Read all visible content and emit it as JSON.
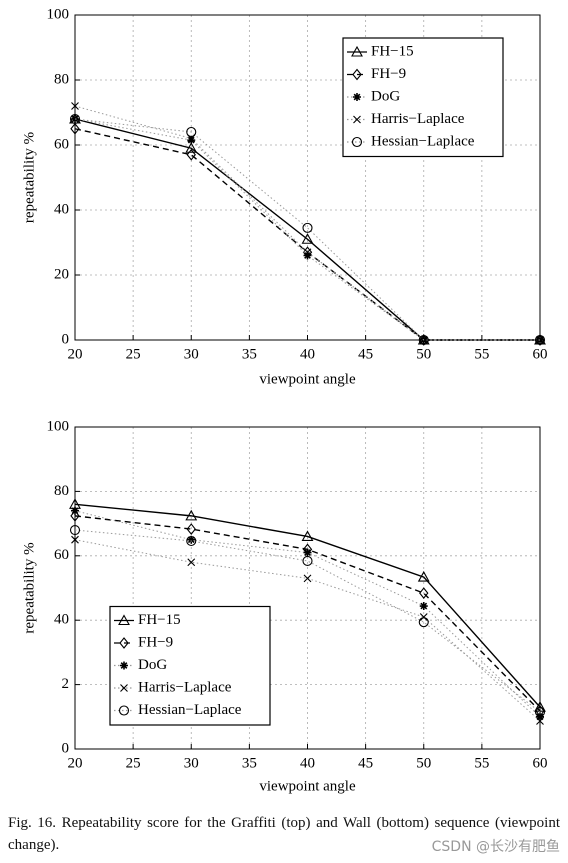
{
  "chart_data": [
    {
      "type": "line",
      "xlabel": "viewpoint angle",
      "ylabel": "repeatability %",
      "x": [
        20,
        30,
        40,
        50,
        60
      ],
      "xlim": [
        20,
        60
      ],
      "xticks": [
        20,
        25,
        30,
        35,
        40,
        45,
        50,
        55,
        60
      ],
      "ylim": [
        0,
        100
      ],
      "yticks": [
        0,
        20,
        40,
        60,
        80,
        100
      ],
      "grid": true,
      "legend": "upper right",
      "series": [
        {
          "name": "FH−15",
          "color": "#000000",
          "linestyle": "solid",
          "marker": "triangle",
          "values": [
            68,
            59,
            31,
            0,
            0
          ]
        },
        {
          "name": "FH−9",
          "color": "#000000",
          "linestyle": "dashed",
          "marker": "diamond",
          "values": [
            65,
            57,
            27,
            0,
            0
          ]
        },
        {
          "name": "DoG",
          "color": "#999999",
          "linestyle": "dotted",
          "marker": "asterisk",
          "values": [
            68,
            61.5,
            26,
            0,
            0
          ]
        },
        {
          "name": "Harris−Laplace",
          "color": "#999999",
          "linestyle": "dotted",
          "marker": "x",
          "values": [
            72,
            62,
            27,
            0,
            0
          ]
        },
        {
          "name": "Hessian−Laplace",
          "color": "#999999",
          "linestyle": "dotted",
          "marker": "circle",
          "values": [
            68,
            64,
            34.5,
            0,
            0
          ]
        }
      ]
    },
    {
      "type": "line",
      "xlabel": "viewpoint angle",
      "ylabel": "repeatability %",
      "x": [
        20,
        30,
        40,
        50,
        60
      ],
      "xlim": [
        20,
        60
      ],
      "xticks": [
        20,
        25,
        30,
        35,
        40,
        45,
        50,
        55,
        60
      ],
      "ylim": [
        0,
        100
      ],
      "yticks": [
        0,
        {
          "value": 20,
          "label": "2"
        },
        40,
        60,
        80,
        100
      ],
      "grid": true,
      "legend": "lower left",
      "series": [
        {
          "name": "FH−15",
          "color": "#000000",
          "linestyle": "solid",
          "marker": "triangle",
          "values": [
            76,
            72.4,
            66,
            53.4,
            13
          ]
        },
        {
          "name": "FH−9",
          "color": "#000000",
          "linestyle": "dashed",
          "marker": "diamond",
          "values": [
            72.4,
            68.3,
            62,
            48.4,
            11.8
          ]
        },
        {
          "name": "DoG",
          "color": "#999999",
          "linestyle": "dotted",
          "marker": "asterisk",
          "values": [
            74,
            65,
            61,
            44.4,
            10
          ]
        },
        {
          "name": "Harris−Laplace",
          "color": "#999999",
          "linestyle": "dotted",
          "marker": "x",
          "values": [
            65,
            58,
            53,
            41,
            8.7
          ]
        },
        {
          "name": "Hessian−Laplace",
          "color": "#999999",
          "linestyle": "dotted",
          "marker": "circle",
          "values": [
            68,
            64.6,
            58.4,
            39.4,
            11.5
          ]
        }
      ]
    }
  ],
  "caption": "Fig. 16. Repeatability score for the Graffiti (top) and Wall (bottom) sequence (viewpoint change).",
  "watermark": "CSDN @长沙有肥鱼"
}
